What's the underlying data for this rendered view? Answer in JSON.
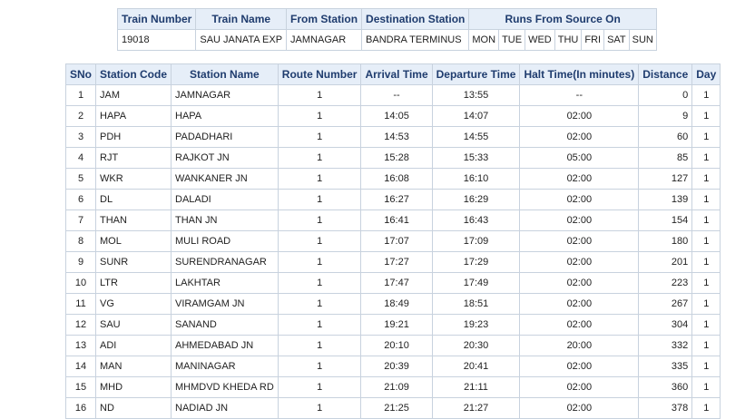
{
  "train_info": {
    "headers": [
      "Train Number",
      "Train Name",
      "From Station",
      "Destination Station",
      "Runs From Source On"
    ],
    "train_number": "19018",
    "train_name": "SAU JANATA EXP",
    "from_station": "JAMNAGAR",
    "destination_station": "BANDRA TERMINUS",
    "run_days": [
      "MON",
      "TUE",
      "WED",
      "THU",
      "FRI",
      "SAT",
      "SUN"
    ]
  },
  "route": {
    "headers": [
      "SNo",
      "Station Code",
      "Station Name",
      "Route Number",
      "Arrival Time",
      "Departure Time",
      "Halt Time(In minutes)",
      "Distance",
      "Day"
    ],
    "rows": [
      [
        "1",
        "JAM",
        "JAMNAGAR",
        "1",
        "--",
        "13:55",
        "--",
        "0",
        "1"
      ],
      [
        "2",
        "HAPA",
        "HAPA",
        "1",
        "14:05",
        "14:07",
        "02:00",
        "9",
        "1"
      ],
      [
        "3",
        "PDH",
        "PADADHARI",
        "1",
        "14:53",
        "14:55",
        "02:00",
        "60",
        "1"
      ],
      [
        "4",
        "RJT",
        "RAJKOT JN",
        "1",
        "15:28",
        "15:33",
        "05:00",
        "85",
        "1"
      ],
      [
        "5",
        "WKR",
        "WANKANER JN",
        "1",
        "16:08",
        "16:10",
        "02:00",
        "127",
        "1"
      ],
      [
        "6",
        "DL",
        "DALADI",
        "1",
        "16:27",
        "16:29",
        "02:00",
        "139",
        "1"
      ],
      [
        "7",
        "THAN",
        "THAN JN",
        "1",
        "16:41",
        "16:43",
        "02:00",
        "154",
        "1"
      ],
      [
        "8",
        "MOL",
        "MULI ROAD",
        "1",
        "17:07",
        "17:09",
        "02:00",
        "180",
        "1"
      ],
      [
        "9",
        "SUNR",
        "SURENDRANAGAR",
        "1",
        "17:27",
        "17:29",
        "02:00",
        "201",
        "1"
      ],
      [
        "10",
        "LTR",
        "LAKHTAR",
        "1",
        "17:47",
        "17:49",
        "02:00",
        "223",
        "1"
      ],
      [
        "11",
        "VG",
        "VIRAMGAM JN",
        "1",
        "18:49",
        "18:51",
        "02:00",
        "267",
        "1"
      ],
      [
        "12",
        "SAU",
        "SANAND",
        "1",
        "19:21",
        "19:23",
        "02:00",
        "304",
        "1"
      ],
      [
        "13",
        "ADI",
        "AHMEDABAD JN",
        "1",
        "20:10",
        "20:30",
        "20:00",
        "332",
        "1"
      ],
      [
        "14",
        "MAN",
        "MANINAGAR",
        "1",
        "20:39",
        "20:41",
        "02:00",
        "335",
        "1"
      ],
      [
        "15",
        "MHD",
        "MHMDVD KHEDA RD",
        "1",
        "21:09",
        "21:11",
        "02:00",
        "360",
        "1"
      ],
      [
        "16",
        "ND",
        "NADIAD JN",
        "1",
        "21:25",
        "21:27",
        "02:00",
        "378",
        "1"
      ]
    ]
  },
  "colors": {
    "header_bg": "#e6eef8",
    "header_text": "#1f3c6e",
    "border": "#c8d2de"
  }
}
